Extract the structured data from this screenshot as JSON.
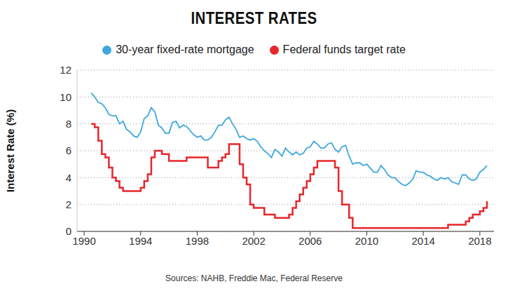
{
  "chart_data": {
    "type": "line",
    "title": "INTEREST RATES",
    "ylabel": "Interest Rate (%)",
    "source": "Sources: NAHB, Freddie Mac, Federal Reserve",
    "legend": "top",
    "grid": true,
    "x": [
      1990.5,
      1990.75,
      1991,
      1991.25,
      1991.5,
      1991.75,
      1992,
      1992.25,
      1992.5,
      1992.75,
      1993,
      1993.25,
      1993.5,
      1993.75,
      1994,
      1994.25,
      1994.5,
      1994.75,
      1995,
      1995.25,
      1995.5,
      1995.75,
      1996,
      1996.25,
      1996.5,
      1996.75,
      1997,
      1997.25,
      1997.5,
      1997.75,
      1998,
      1998.25,
      1998.5,
      1998.75,
      1999,
      1999.25,
      1999.5,
      1999.75,
      2000,
      2000.25,
      2000.5,
      2000.75,
      2001,
      2001.25,
      2001.5,
      2001.75,
      2002,
      2002.25,
      2002.5,
      2002.75,
      2003,
      2003.25,
      2003.5,
      2003.75,
      2004,
      2004.25,
      2004.5,
      2004.75,
      2005,
      2005.25,
      2005.5,
      2005.75,
      2006,
      2006.25,
      2006.5,
      2006.75,
      2007,
      2007.25,
      2007.5,
      2007.75,
      2008,
      2008.25,
      2008.5,
      2008.75,
      2009,
      2009.25,
      2009.5,
      2009.75,
      2010,
      2010.25,
      2010.5,
      2010.75,
      2011,
      2011.25,
      2011.5,
      2011.75,
      2012,
      2012.25,
      2012.5,
      2012.75,
      2013,
      2013.25,
      2013.5,
      2013.75,
      2014,
      2014.25,
      2014.5,
      2014.75,
      2015,
      2015.25,
      2015.5,
      2015.75,
      2016,
      2016.25,
      2016.5,
      2016.75,
      2017,
      2017.25,
      2017.5,
      2017.75,
      2018,
      2018.25,
      2018.5
    ],
    "series": [
      {
        "name": "30-year fixed-rate mortgage",
        "color": "#3ea8dc",
        "line_style": "solid",
        "values": [
          10.3,
          10.0,
          9.6,
          9.5,
          9.2,
          8.7,
          8.6,
          8.6,
          8.0,
          8.2,
          7.6,
          7.4,
          7.1,
          7.0,
          7.4,
          8.4,
          8.6,
          9.2,
          8.9,
          7.9,
          7.7,
          7.3,
          7.3,
          8.1,
          8.2,
          7.7,
          7.9,
          7.8,
          7.5,
          7.2,
          7.0,
          7.1,
          6.8,
          6.8,
          7.0,
          7.4,
          7.9,
          7.9,
          8.3,
          8.5,
          8.0,
          7.6,
          7.0,
          7.1,
          6.9,
          6.8,
          6.9,
          6.7,
          6.3,
          6.0,
          5.8,
          5.5,
          6.1,
          5.9,
          5.6,
          6.2,
          5.9,
          5.7,
          5.9,
          5.7,
          5.8,
          6.2,
          6.3,
          6.7,
          6.5,
          6.2,
          6.2,
          6.5,
          6.6,
          6.1,
          5.9,
          6.3,
          6.4,
          5.6,
          5.0,
          5.1,
          5.1,
          4.9,
          5.0,
          4.7,
          4.4,
          4.4,
          4.9,
          4.6,
          4.2,
          4.0,
          4.0,
          3.7,
          3.5,
          3.4,
          3.6,
          3.9,
          4.5,
          4.4,
          4.4,
          4.2,
          4.1,
          3.9,
          3.8,
          4.0,
          3.9,
          4.0,
          3.7,
          3.6,
          3.5,
          4.2,
          4.2,
          3.9,
          3.8,
          3.9,
          4.4,
          4.6,
          4.9
        ]
      },
      {
        "name": "Federal funds target rate",
        "color": "#e8262b",
        "line_style": "step",
        "values": [
          8.0,
          7.75,
          6.75,
          5.75,
          5.5,
          4.75,
          4.0,
          3.75,
          3.25,
          3.0,
          3.0,
          3.0,
          3.0,
          3.0,
          3.25,
          3.75,
          4.25,
          5.5,
          6.0,
          6.0,
          5.75,
          5.75,
          5.25,
          5.25,
          5.25,
          5.25,
          5.25,
          5.5,
          5.5,
          5.5,
          5.5,
          5.5,
          5.5,
          4.75,
          4.75,
          4.75,
          5.25,
          5.5,
          5.75,
          6.5,
          6.5,
          6.5,
          5.0,
          4.0,
          3.5,
          2.0,
          1.75,
          1.75,
          1.75,
          1.25,
          1.25,
          1.25,
          1.0,
          1.0,
          1.0,
          1.0,
          1.25,
          1.75,
          2.25,
          2.75,
          3.25,
          3.75,
          4.25,
          4.75,
          5.25,
          5.25,
          5.25,
          5.25,
          5.25,
          4.75,
          3.0,
          2.0,
          2.0,
          1.0,
          0.25,
          0.25,
          0.25,
          0.25,
          0.25,
          0.25,
          0.25,
          0.25,
          0.25,
          0.25,
          0.25,
          0.25,
          0.25,
          0.25,
          0.25,
          0.25,
          0.25,
          0.25,
          0.25,
          0.25,
          0.25,
          0.25,
          0.25,
          0.25,
          0.25,
          0.25,
          0.25,
          0.5,
          0.5,
          0.5,
          0.5,
          0.5,
          0.75,
          1.0,
          1.25,
          1.25,
          1.5,
          1.75,
          2.25
        ]
      }
    ],
    "xlim": [
      1989.5,
      2019
    ],
    "xticks": [
      1990,
      1994,
      1998,
      2002,
      2006,
      2010,
      2014,
      2018
    ],
    "ylim": [
      0,
      12
    ],
    "yticks": [
      0,
      2,
      4,
      6,
      8,
      10,
      12
    ]
  }
}
